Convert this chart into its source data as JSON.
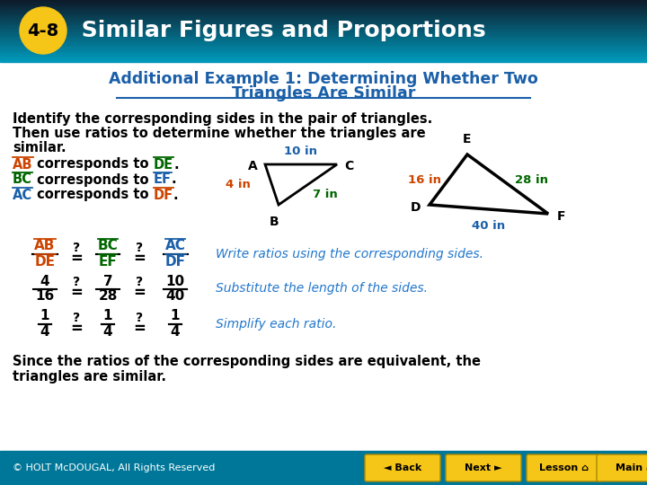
{
  "title_badge": "4-8",
  "title_text": " Similar Figures and Proportions",
  "subtitle": "Additional Example 1: Determining Whether Two\nTriangles Are Similar",
  "body_text": "Identify the corresponding sides in the pair of triangles.\nThen use ratios to determine whether the triangles are\nsimilar.",
  "ratio_desc1": "Write ratios using the corresponding sides.",
  "ratio_desc2": "Substitute the length of the sides.",
  "ratio_desc3": "Simplify each ratio.",
  "conclusion": "Since the ratios of the corresponding sides are equivalent, the\ntriangles are similar.",
  "footer_text": "© HOLT McDOUGAL, All Rights Reserved",
  "colors": {
    "header_dark": "#0d1b2a",
    "header_teal": "#0099bb",
    "badge_bg": "#f5c518",
    "header_text": "#ffffff",
    "subtitle_text": "#1a5fa8",
    "body_text": "#000000",
    "orange": "#cc4400",
    "green": "#006600",
    "blue_dark": "#1a5fa8",
    "ratio_desc": "#2277cc",
    "footer_bg": "#007799",
    "footer_text": "#ffffff",
    "button_bg": "#f5c518"
  }
}
